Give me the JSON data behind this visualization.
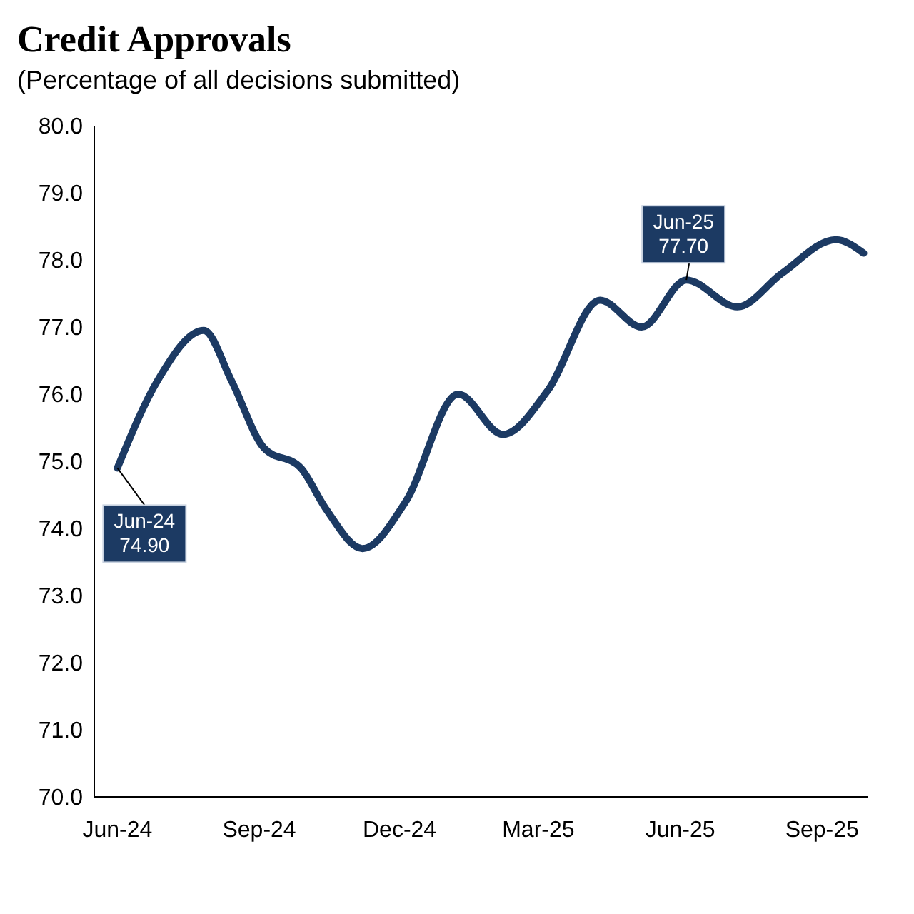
{
  "chart_data": {
    "type": "line",
    "title": "Credit Approvals",
    "subtitle": "(Percentage of all decisions submitted)",
    "x": [
      "2024-06-01",
      "2024-06-27",
      "2024-07-27",
      "2024-08-14",
      "2024-09-04",
      "2024-09-28",
      "2024-10-14",
      "2024-11-07",
      "2024-12-05",
      "2025-01-08",
      "2025-02-06",
      "2025-03-07",
      "2025-04-10",
      "2025-05-07",
      "2025-06-05",
      "2025-07-08",
      "2025-08-06",
      "2025-09-10",
      "2025-09-28"
    ],
    "series": [
      {
        "color": "#1c3a63",
        "values": [
          74.9,
          76.2,
          76.95,
          76.2,
          75.2,
          74.9,
          74.3,
          73.7,
          74.4,
          76.0,
          75.4,
          76.05,
          77.4,
          77.0,
          77.7,
          77.3,
          77.8,
          78.3,
          78.1
        ]
      }
    ],
    "xlim": [
      "2024-05-17",
      "2025-10-01"
    ],
    "xticks": [
      {
        "value": "2024-06-01",
        "label": "Jun-24"
      },
      {
        "value": "2024-09-01",
        "label": "Sep-24"
      },
      {
        "value": "2024-12-01",
        "label": "Dec-24"
      },
      {
        "value": "2025-03-01",
        "label": "Mar-25"
      },
      {
        "value": "2025-06-01",
        "label": "Jun-25"
      },
      {
        "value": "2025-09-01",
        "label": "Sep-25"
      }
    ],
    "ylim": [
      70,
      80
    ],
    "yticks": [
      {
        "value": 70,
        "label": "70.0"
      },
      {
        "value": 71,
        "label": "71.0"
      },
      {
        "value": 72,
        "label": "72.0"
      },
      {
        "value": 73,
        "label": "73.0"
      },
      {
        "value": 74,
        "label": "74.0"
      },
      {
        "value": 75,
        "label": "75.0"
      },
      {
        "value": 76,
        "label": "76.0"
      },
      {
        "value": 77,
        "label": "77.0"
      },
      {
        "value": 78,
        "label": "78.0"
      },
      {
        "value": 79,
        "label": "79.0"
      },
      {
        "value": 80,
        "label": "80.0"
      }
    ],
    "annotations": [
      {
        "text": "Jun-24\n74.90",
        "x": "2024-06-01",
        "y": 74.9
      },
      {
        "text": "Jun-25\n77.70",
        "x": "2025-06-05",
        "y": 77.7
      }
    ]
  }
}
